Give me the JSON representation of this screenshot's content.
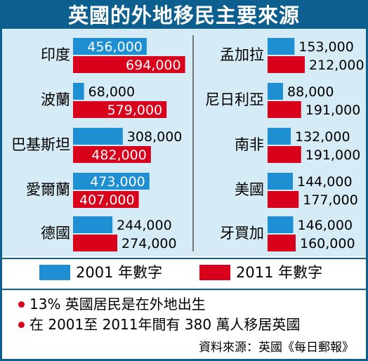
{
  "title": "英國的外地移民主要來源",
  "colors": {
    "series_2001": "#1d8fd2",
    "series_2011": "#d9001b",
    "title_bg": "#0d5f8f",
    "panel_bg": "#d5ebf5"
  },
  "legend": {
    "label_2001": "2001 年數字",
    "label_2011": "2011 年數字"
  },
  "notes": [
    "13% 英國居民是在外地出生",
    "在 2001至 2011年間有 380 萬人移居英國"
  ],
  "source": "資料來源：英國《每日郵報》",
  "chart_data": {
    "type": "bar",
    "orientation": "horizontal",
    "title": "英國的外地移民主要來源",
    "series": [
      {
        "name": "2001 年數字",
        "color": "#1d8fd2"
      },
      {
        "name": "2011 年數字",
        "color": "#d9001b"
      }
    ],
    "groups": [
      {
        "label": "印度",
        "v2001": 456000,
        "v2011": 694000,
        "t2001": "456,000",
        "t2011": "694,000"
      },
      {
        "label": "波蘭",
        "v2001": 68000,
        "v2011": 579000,
        "t2001": "68,000",
        "t2011": "579,000"
      },
      {
        "label": "巴基斯坦",
        "v2001": 308000,
        "v2011": 482000,
        "t2001": "308,000",
        "t2011": "482,000"
      },
      {
        "label": "愛爾蘭",
        "v2001": 473000,
        "v2011": 407000,
        "t2001": "473,000",
        "t2011": "407,000"
      },
      {
        "label": "德國",
        "v2001": 244000,
        "v2011": 274000,
        "t2001": "244,000",
        "t2011": "274,000"
      },
      {
        "label": "孟加拉",
        "v2001": 153000,
        "v2011": 212000,
        "t2001": "153,000",
        "t2011": "212,000"
      },
      {
        "label": "尼日利亞",
        "v2001": 88000,
        "v2011": 191000,
        "t2001": "88,000",
        "t2011": "191,000"
      },
      {
        "label": "南非",
        "v2001": 132000,
        "v2011": 191000,
        "t2001": "132,000",
        "t2011": "191,000"
      },
      {
        "label": "美國",
        "v2001": 144000,
        "v2011": 177000,
        "t2001": "144,000",
        "t2011": "177,000"
      },
      {
        "label": "牙買加",
        "v2001": 146000,
        "v2011": 160000,
        "t2001": "146,000",
        "t2011": "160,000"
      }
    ]
  }
}
